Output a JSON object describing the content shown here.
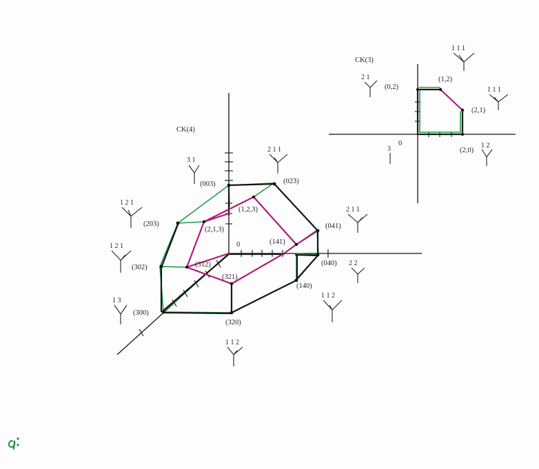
{
  "ck4": {
    "title": "CK(4)",
    "origin_label": "0",
    "vertices": {
      "v003": "(003)",
      "v023": "(023)",
      "v203": "(203)",
      "v041": "(041)",
      "v302": "(302)",
      "v040": "(040)",
      "v300": "(300)",
      "v140": "(140)",
      "v320": "(320)",
      "v123": "(1,2,3)",
      "v213": "(2,1,3)",
      "v141": "(141)",
      "v312": "(312)",
      "v321": "(321)"
    },
    "trees": {
      "t003": "3 1",
      "t023": "2 1 1",
      "t203": "1 2 1",
      "t302": "1 2 1",
      "t041": "2 1 1",
      "t040": "2 2",
      "t300": "1 3",
      "t140": "1 1 2",
      "t320": "1 1 2"
    }
  },
  "ck3": {
    "title": "CK(3)",
    "origin_label": "0",
    "vertices": {
      "v02": "(0,2)",
      "v12": "(1,2)",
      "v21": "(2,1)",
      "v20": "(2,0)"
    },
    "trees": {
      "t02": "2 1",
      "t12": "1 1 1",
      "t21": "1 1 1",
      "t20": "1 2",
      "t0": "3"
    }
  },
  "colors": {
    "black_edge": "#161616",
    "green_edge": "#1d9b43",
    "magenta_edge": "#b01a7d",
    "page": "#fdfdfd"
  },
  "corner_mark": "q:"
}
